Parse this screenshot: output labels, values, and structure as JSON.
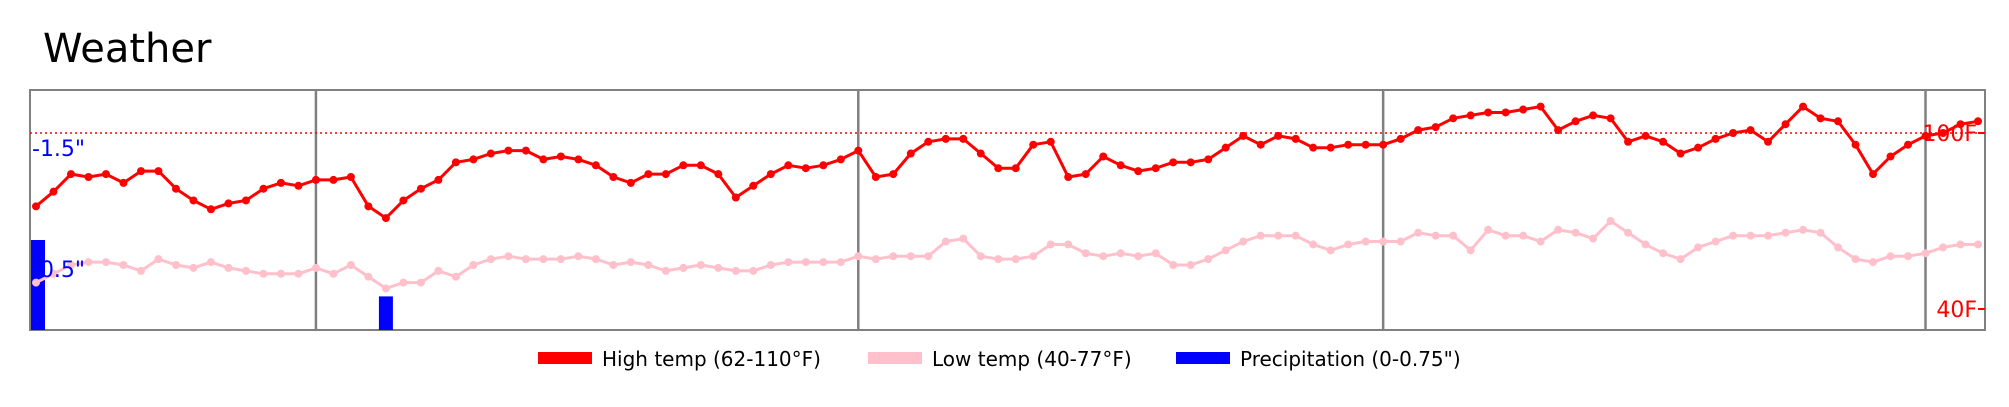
{
  "chart_data": {
    "type": "line",
    "title": "Weather",
    "colors": {
      "high": "#ff0000",
      "low": "#ffc0cb",
      "precip": "#0000ff",
      "frame": "#808080",
      "text": "#000000"
    },
    "x_count": 112,
    "vertical_markers": [
      16,
      47,
      77,
      108
    ],
    "hline": {
      "label": "100F",
      "value": 100
    },
    "right_labels": [
      {
        "label": "100F",
        "value": 100
      },
      {
        "label": "40F",
        "value": 40
      }
    ],
    "left_labels": [
      {
        "label": "1.5\"",
        "value": 1.5
      },
      {
        "label": "0.5\"",
        "value": 0.5
      }
    ],
    "series": [
      {
        "name": "High temp (62-110°F)",
        "key": "high",
        "values": [
          75,
          80,
          86,
          85,
          86,
          83,
          87,
          87,
          81,
          77,
          74,
          76,
          77,
          81,
          83,
          82,
          84,
          84,
          85,
          75,
          71,
          77,
          81,
          84,
          90,
          91,
          93,
          94,
          94,
          91,
          92,
          91,
          89,
          85,
          83,
          86,
          86,
          89,
          89,
          86,
          78,
          82,
          86,
          89,
          88,
          89,
          91,
          94,
          85,
          86,
          93,
          97,
          98,
          98,
          93,
          88,
          88,
          96,
          97,
          85,
          86,
          92,
          89,
          87,
          88,
          90,
          90,
          91,
          95,
          99,
          96,
          99,
          98,
          95,
          95,
          96,
          96,
          96,
          98,
          101,
          102,
          105,
          106,
          107,
          107,
          108,
          109,
          101,
          104,
          106,
          105,
          97,
          99,
          97,
          93,
          95,
          98,
          100,
          101,
          97,
          103,
          109,
          105,
          104,
          96,
          86,
          92,
          96,
          99,
          100,
          103,
          104
        ],
        "valid_range": [
          62,
          110
        ]
      },
      {
        "name": "Low temp (40-77°F)",
        "key": "low",
        "values": [
          49,
          52,
          55,
          56,
          56,
          55,
          53,
          57,
          55,
          54,
          56,
          54,
          53,
          52,
          52,
          52,
          54,
          52,
          55,
          51,
          47,
          49,
          49,
          53,
          51,
          55,
          57,
          58,
          57,
          57,
          57,
          58,
          57,
          55,
          56,
          55,
          53,
          54,
          55,
          54,
          53,
          53,
          55,
          56,
          56,
          56,
          56,
          58,
          57,
          58,
          58,
          58,
          63,
          64,
          58,
          57,
          57,
          58,
          62,
          62,
          59,
          58,
          59,
          58,
          59,
          55,
          55,
          57,
          60,
          63,
          65,
          65,
          65,
          62,
          60,
          62,
          63,
          63,
          63,
          66,
          65,
          65,
          60,
          67,
          65,
          65,
          63,
          67,
          66,
          64,
          70,
          66,
          62,
          59,
          57,
          61,
          63,
          65,
          65,
          65,
          66,
          67,
          66,
          61,
          57,
          56,
          58,
          58,
          59,
          61,
          62,
          62
        ],
        "valid_range": [
          40,
          77
        ]
      },
      {
        "name": "Precipitation (0-0.75\")",
        "key": "precip",
        "values": [
          0.75,
          0,
          0,
          0,
          0,
          0,
          0,
          0,
          0,
          0,
          0,
          0,
          0,
          0,
          0,
          0,
          0,
          0,
          0,
          0,
          0.28,
          0,
          0,
          0,
          0,
          0,
          0,
          0,
          0,
          0,
          0,
          0,
          0,
          0,
          0,
          0,
          0,
          0,
          0,
          0,
          0,
          0,
          0,
          0,
          0,
          0,
          0,
          0,
          0,
          0,
          0,
          0,
          0,
          0,
          0,
          0,
          0,
          0,
          0,
          0,
          0,
          0,
          0,
          0,
          0,
          0,
          0,
          0,
          0,
          0,
          0,
          0,
          0,
          0,
          0,
          0,
          0,
          0,
          0,
          0,
          0,
          0,
          0,
          0,
          0,
          0,
          0,
          0,
          0,
          0,
          0,
          0,
          0,
          0,
          0,
          0,
          0,
          0,
          0,
          0,
          0,
          0,
          0,
          0,
          0,
          0,
          0,
          0,
          0,
          0,
          0,
          0
        ],
        "valid_range": [
          0,
          0.75
        ]
      }
    ],
    "legend": {
      "placement": "bottom-center",
      "items": [
        {
          "label": "High temp (62-110°F)",
          "color_key": "high"
        },
        {
          "label": "Low temp (40-77°F)",
          "color_key": "low"
        },
        {
          "label": "Precipitation (0-0.75\")",
          "color_key": "precip"
        }
      ]
    }
  }
}
